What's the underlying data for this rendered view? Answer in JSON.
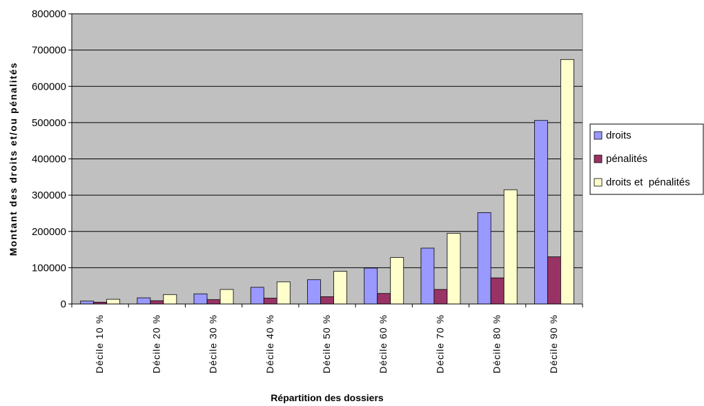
{
  "chart_data": {
    "type": "bar",
    "title": "",
    "xlabel": "Répartition des dossiers",
    "ylabel": "Montant des droits et/ou pénalités",
    "ylim": [
      0,
      800000
    ],
    "yticks": [
      0,
      100000,
      200000,
      300000,
      400000,
      500000,
      600000,
      700000,
      800000
    ],
    "grid": true,
    "legend_position": "right",
    "plot_background": "#c0c0c0",
    "categories": [
      "Décile 10 %",
      "Décile 20 %",
      "Décile 30 %",
      "Décile 40 %",
      "Décile 50 %",
      "Décile 60 %",
      "Décile 70 %",
      "Décile 80 %",
      "Décile 90 %"
    ],
    "series": [
      {
        "name": "droits",
        "color": "#9999ff",
        "values": [
          8000,
          17000,
          28000,
          46000,
          67000,
          99000,
          154000,
          252000,
          506000
        ]
      },
      {
        "name": "pénalités",
        "color": "#993366",
        "values": [
          5000,
          9000,
          12000,
          16000,
          20000,
          29000,
          40000,
          72000,
          130000
        ]
      },
      {
        "name": "droits et  pénalités",
        "color": "#ffffcc",
        "values": [
          13000,
          26000,
          40000,
          61000,
          90000,
          128000,
          195000,
          315000,
          674000
        ]
      }
    ]
  }
}
